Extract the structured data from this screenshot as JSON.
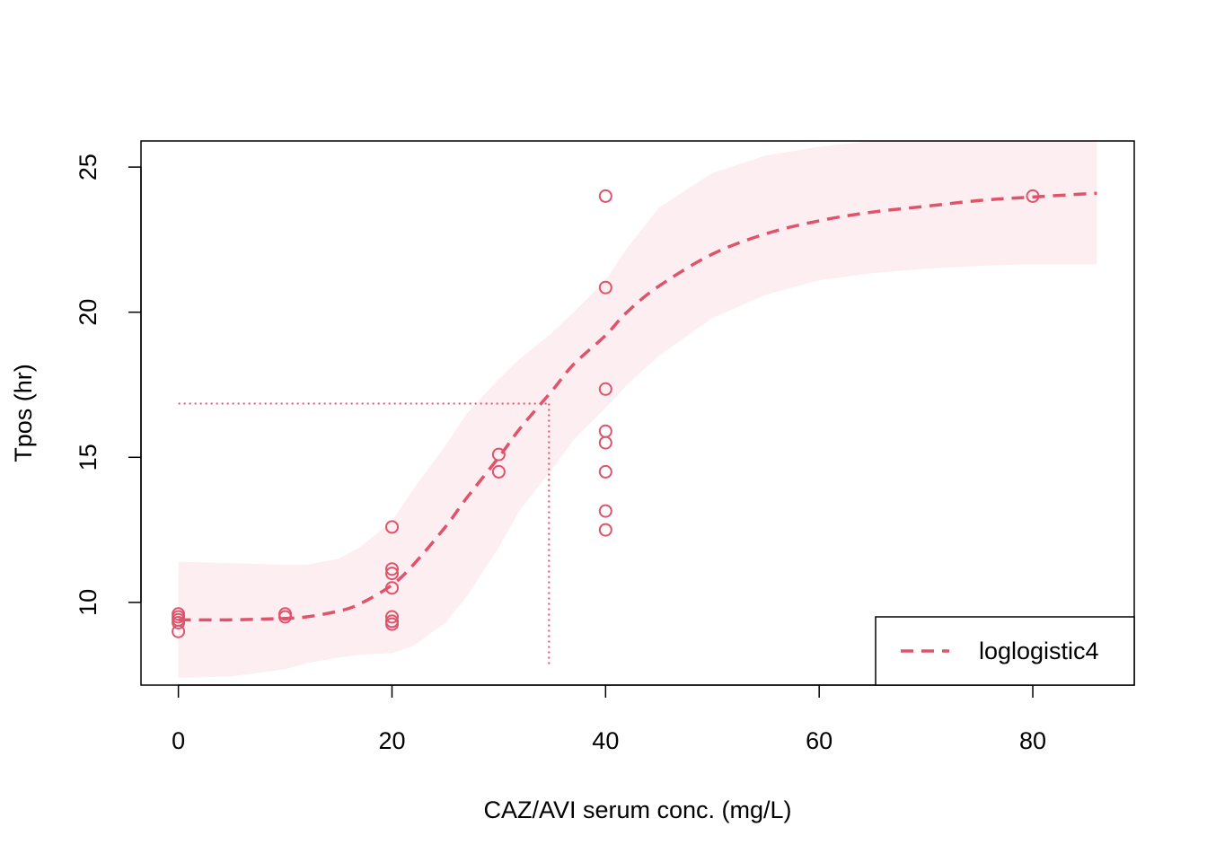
{
  "chart_data": {
    "type": "scatter",
    "xlabel": "CAZ/AVI serum conc. (mg/L)",
    "ylabel": "Tpos (hr)",
    "xlim": [
      -3.5,
      89.5
    ],
    "ylim": [
      7.15,
      25.9
    ],
    "x_ticks": [
      0,
      20,
      40,
      60,
      80
    ],
    "y_ticks": [
      10,
      15,
      20,
      25
    ],
    "colors": {
      "series": "#DF536B",
      "band": "#FCEEF1",
      "axis": "#000000"
    },
    "grid": false,
    "legend_position": "bottom-right",
    "legend": [
      {
        "label": "loglogistic4",
        "style": "dashed-line"
      }
    ],
    "points": [
      {
        "x": 0,
        "y": 9.0
      },
      {
        "x": 0,
        "y": 9.3
      },
      {
        "x": 0,
        "y": 9.4
      },
      {
        "x": 0,
        "y": 9.5
      },
      {
        "x": 0,
        "y": 9.6
      },
      {
        "x": 10,
        "y": 9.5
      },
      {
        "x": 10,
        "y": 9.6
      },
      {
        "x": 20,
        "y": 9.25
      },
      {
        "x": 20,
        "y": 9.35
      },
      {
        "x": 20,
        "y": 9.5
      },
      {
        "x": 20,
        "y": 10.5
      },
      {
        "x": 20,
        "y": 11.0
      },
      {
        "x": 20,
        "y": 11.15
      },
      {
        "x": 20,
        "y": 12.6
      },
      {
        "x": 30,
        "y": 14.5
      },
      {
        "x": 30,
        "y": 15.1
      },
      {
        "x": 40,
        "y": 12.5
      },
      {
        "x": 40,
        "y": 13.15
      },
      {
        "x": 40,
        "y": 14.5
      },
      {
        "x": 40,
        "y": 15.5
      },
      {
        "x": 40,
        "y": 15.9
      },
      {
        "x": 40,
        "y": 17.35
      },
      {
        "x": 40,
        "y": 20.85
      },
      {
        "x": 40,
        "y": 24.0
      },
      {
        "x": 80,
        "y": 24.0
      }
    ],
    "fit_curve": {
      "name": "loglogistic4",
      "x": [
        0,
        5,
        10,
        12,
        15,
        17,
        20,
        22,
        25,
        27,
        30,
        32,
        35,
        37,
        40,
        42,
        45,
        50,
        55,
        60,
        65,
        70,
        75,
        80,
        86
      ],
      "y": [
        9.4,
        9.4,
        9.45,
        9.5,
        9.7,
        9.95,
        10.6,
        11.3,
        12.6,
        13.6,
        15.0,
        16.0,
        17.3,
        18.2,
        19.2,
        20.0,
        20.9,
        22.0,
        22.7,
        23.15,
        23.45,
        23.65,
        23.85,
        23.97,
        24.1
      ]
    },
    "confidence_band": {
      "x": [
        0,
        5,
        10,
        12,
        15,
        17,
        20,
        22,
        25,
        27,
        30,
        32,
        35,
        37,
        40,
        42,
        45,
        50,
        55,
        60,
        65,
        70,
        75,
        80,
        86
      ],
      "lower": [
        7.4,
        7.45,
        7.7,
        7.9,
        8.1,
        8.2,
        8.25,
        8.5,
        9.3,
        10.2,
        11.9,
        13.2,
        14.6,
        15.6,
        16.7,
        17.5,
        18.5,
        19.8,
        20.6,
        21.1,
        21.35,
        21.5,
        21.6,
        21.65,
        21.65
      ],
      "upper": [
        11.4,
        11.35,
        11.3,
        11.3,
        11.5,
        11.9,
        12.8,
        13.9,
        15.4,
        16.5,
        17.7,
        18.4,
        19.3,
        20.0,
        21.1,
        22.2,
        23.6,
        24.8,
        25.4,
        25.7,
        25.9,
        26.0,
        26.0,
        26.0,
        26.0
      ]
    },
    "reference_lines": {
      "x": 34.7,
      "y": 16.85,
      "x_from": 0,
      "y_from": 7.8
    }
  }
}
